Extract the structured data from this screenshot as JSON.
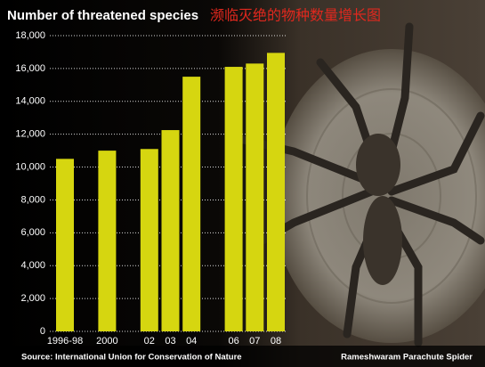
{
  "chart_data": {
    "type": "bar",
    "title": "Number of threatened species",
    "subtitle": "濒临灭绝的物种数量增长图",
    "source": "Source: International Union for Conservation of Nature",
    "caption": "Rameshwaram Parachute Spider",
    "categories": [
      "1996-98",
      null,
      "2000",
      null,
      "02",
      "03",
      "04",
      null,
      "06",
      "07",
      "08"
    ],
    "values": [
      10500,
      null,
      11000,
      null,
      11100,
      12250,
      15500,
      null,
      16100,
      16300,
      16950
    ],
    "color": "#d6d610",
    "ylim": [
      0,
      18000
    ],
    "yticks": [
      0,
      {
        "value": 2000,
        "label": "2,000"
      },
      {
        "value": 4000,
        "label": "4,000"
      },
      {
        "value": 6000,
        "label": "6,000"
      },
      {
        "value": 8000,
        "label": "8,000"
      },
      {
        "value": 10000,
        "label": "10,000"
      },
      {
        "value": 12000,
        "label": "12,000"
      },
      {
        "value": 14000,
        "label": "14,000"
      },
      {
        "value": 16000,
        "label": "16,000"
      },
      {
        "value": 18000,
        "label": "18,000"
      }
    ],
    "grid": true
  }
}
